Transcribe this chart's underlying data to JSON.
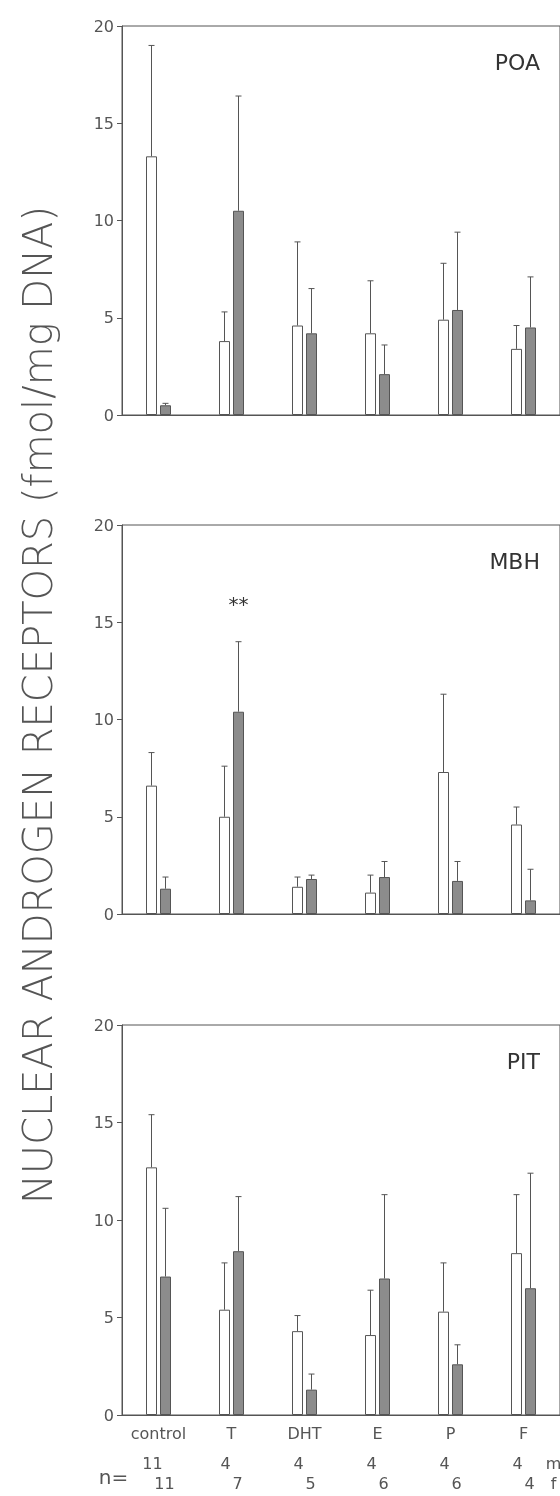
{
  "chart_data": [
    {
      "type": "bar",
      "title": "POA",
      "categories": [
        null,
        null,
        null,
        null,
        null,
        null
      ],
      "ylim": [
        0,
        20
      ],
      "yticks": [
        0,
        5,
        10,
        15,
        20
      ],
      "series": [
        {
          "color": "#ffffff",
          "values": [
            13.3,
            3.8,
            4.6,
            4.2,
            4.9,
            3.4
          ],
          "errors": [
            [
              13.3,
              19.0
            ],
            [
              3.8,
              5.3
            ],
            [
              4.6,
              8.9
            ],
            [
              4.2,
              6.9
            ],
            [
              4.9,
              7.8
            ],
            [
              3.4,
              4.6
            ]
          ]
        },
        {
          "color": "#8c8c8c",
          "values": [
            0.5,
            10.5,
            4.2,
            2.1,
            5.4,
            4.5
          ],
          "errors": [
            [
              0.5,
              0.6
            ],
            [
              10.5,
              16.4
            ],
            [
              4.2,
              6.5
            ],
            [
              2.1,
              3.6
            ],
            [
              5.4,
              9.4
            ],
            [
              4.5,
              7.1
            ]
          ]
        }
      ]
    },
    {
      "type": "bar",
      "title": "MBH",
      "ylabel": "NUCLEAR ANDROGEN RECEPTORS (fmol/mg DNA)",
      "categories": [
        null,
        null,
        null,
        null,
        null,
        null
      ],
      "ylim": [
        0,
        20
      ],
      "yticks": [
        0,
        5,
        10,
        15,
        20
      ],
      "annotations": [
        "**"
      ],
      "series": [
        {
          "color": "#ffffff",
          "values": [
            6.6,
            5.0,
            1.4,
            1.1,
            7.3,
            4.6
          ],
          "errors": [
            [
              6.6,
              8.3
            ],
            [
              5.0,
              7.6
            ],
            [
              1.4,
              1.9
            ],
            [
              1.1,
              2.0
            ],
            [
              7.3,
              11.3
            ],
            [
              4.6,
              5.5
            ]
          ]
        },
        {
          "color": "#8c8c8c",
          "values": [
            1.3,
            10.4,
            1.8,
            1.9,
            1.7,
            0.7
          ],
          "errors": [
            [
              1.3,
              1.9
            ],
            [
              10.4,
              14.0
            ],
            [
              1.8,
              2.0
            ],
            [
              1.9,
              2.7
            ],
            [
              1.7,
              2.7
            ],
            [
              0.7,
              2.3
            ]
          ]
        }
      ]
    },
    {
      "type": "bar",
      "title": "PIT",
      "categories": [
        "control",
        "T",
        "DHT",
        "E",
        "P",
        "F"
      ],
      "ylim": [
        0,
        20
      ],
      "yticks": [
        0,
        5,
        10,
        15,
        20
      ],
      "annotations": [
        "n=",
        "11",
        "11",
        "4",
        "7",
        "4",
        "5",
        "4",
        "6",
        "4",
        "6",
        "4",
        "4",
        "m",
        "f"
      ],
      "series": [
        {
          "color": "#ffffff",
          "values": [
            12.7,
            5.4,
            4.3,
            4.1,
            5.3,
            8.3
          ],
          "errors": [
            [
              12.7,
              15.4
            ],
            [
              5.4,
              7.8
            ],
            [
              4.3,
              5.1
            ],
            [
              4.1,
              6.4
            ],
            [
              5.3,
              7.8
            ],
            [
              8.3,
              11.3
            ]
          ]
        },
        {
          "color": "#8c8c8c",
          "values": [
            7.1,
            8.4,
            1.3,
            7.0,
            2.6,
            6.5
          ],
          "errors": [
            [
              7.1,
              10.6
            ],
            [
              8.4,
              11.2
            ],
            [
              1.3,
              2.1
            ],
            [
              7.0,
              11.3
            ],
            [
              2.6,
              3.6
            ],
            [
              6.5,
              12.4
            ]
          ]
        }
      ]
    }
  ]
}
